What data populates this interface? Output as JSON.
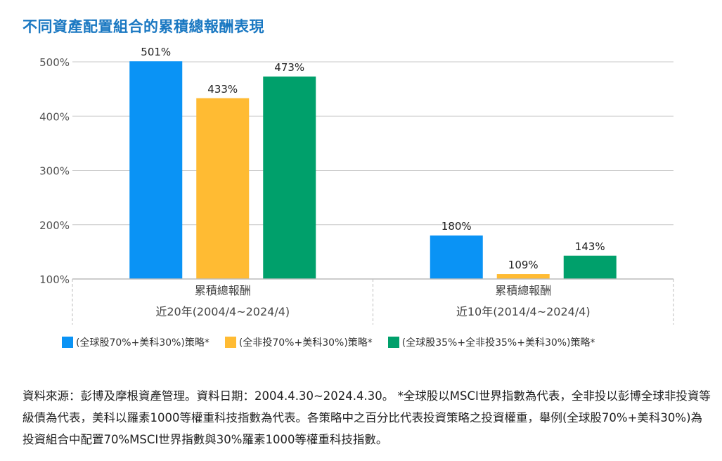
{
  "title": "不同資產配置組合的累積總報酬表現",
  "chart_data": {
    "type": "bar",
    "title": "不同資產配置組合的累積總報酬表現",
    "categories": [
      {
        "line1": "累積總報酬",
        "line2": "近20年(2004/4~2024/4)"
      },
      {
        "line1": "累積總報酬",
        "line2": "近10年(2014/4~2024/4)"
      }
    ],
    "series": [
      {
        "name": "(全球股70%+美科30%)策略*",
        "color": "#0a93f5",
        "values": [
          501,
          180
        ]
      },
      {
        "name": "(全非投70%+美科30%)策略*",
        "color": "#ffbb33",
        "values": [
          433,
          109
        ]
      },
      {
        "name": "(全球股35%+全非投35%+美科30%)策略*",
        "color": "#00a06b",
        "values": [
          473,
          143
        ]
      }
    ],
    "ylim": [
      100,
      500
    ],
    "yticks": [
      "100%",
      "200%",
      "300%",
      "400%",
      "500%"
    ],
    "ytick_values": [
      100,
      200,
      300,
      400,
      500
    ],
    "grid": true,
    "legend": "bottom"
  },
  "footnote": "資料來源：彭博及摩根資產管理。資料日期：2004.4.30~2024.4.30。 *全球股以MSCI世界指數為代表，全非投以彭博全球非投資等級債為代表，美科以羅素1000等權重科技指數為代表。各策略中之百分比代表投資策略之投資權重，舉例(全球股70%+美科30%)為投資組合中配置70%MSCI世界指數與30%羅素1000等權重科技指數。"
}
